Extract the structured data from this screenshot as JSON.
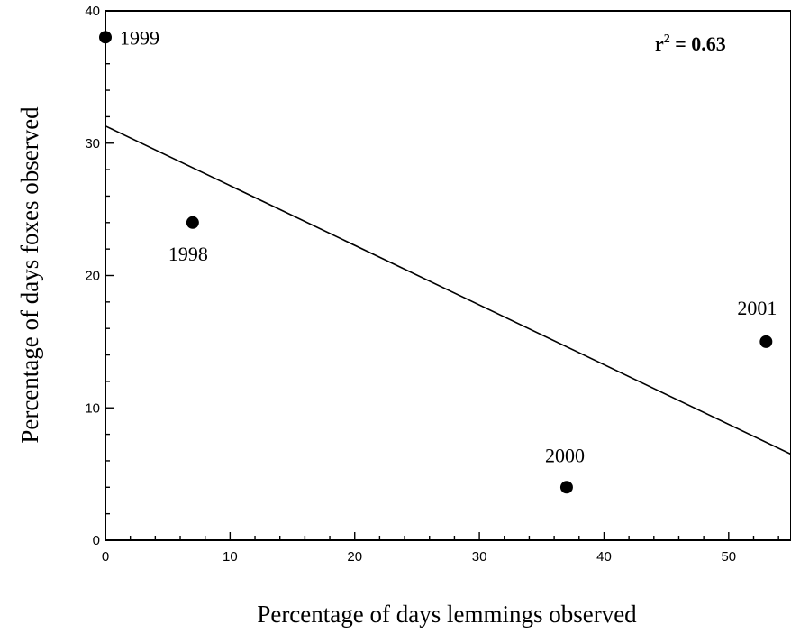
{
  "chart_data": {
    "type": "scatter",
    "xlabel": "Percentage of days lemmings observed",
    "ylabel": "Percentage of days foxes observed",
    "xlim": [
      0,
      55
    ],
    "ylim": [
      0,
      40
    ],
    "x_ticks": [
      0,
      10,
      20,
      30,
      40,
      50
    ],
    "y_ticks": [
      0,
      10,
      20,
      30,
      40
    ],
    "x_tick_labels": [
      "0",
      "10",
      "20",
      "30",
      "40",
      "50"
    ],
    "y_tick_labels": [
      "0",
      "10",
      "20",
      "30",
      "40"
    ],
    "points": [
      {
        "label": "1999",
        "x": 0,
        "y": 38
      },
      {
        "label": "1998",
        "x": 7,
        "y": 24
      },
      {
        "label": "2000",
        "x": 37,
        "y": 4
      },
      {
        "label": "2001",
        "x": 53,
        "y": 15
      }
    ],
    "regression_line": {
      "x": [
        0,
        55
      ],
      "y": [
        31.3,
        6.5
      ]
    },
    "annotation": {
      "prefix": "r",
      "sup": "2",
      "suffix": " = 0.63"
    },
    "grid": false
  }
}
